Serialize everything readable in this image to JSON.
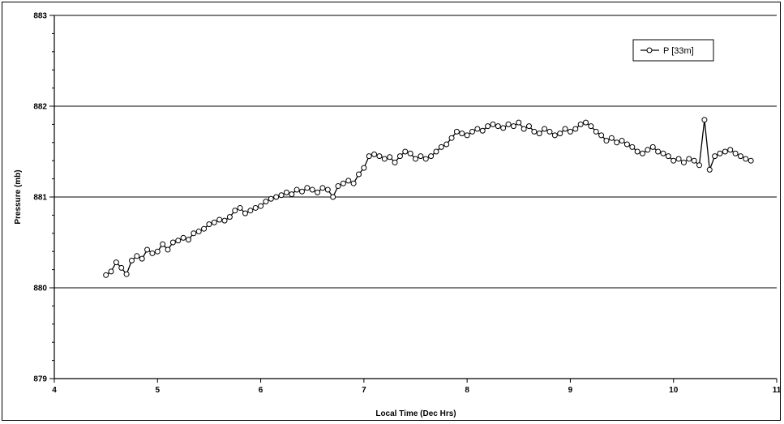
{
  "chart_data": {
    "type": "line",
    "xlabel": "Local Time (Dec Hrs)",
    "ylabel": "Pressure (mb)",
    "xlim": [
      4,
      11
    ],
    "ylim": [
      879,
      883
    ],
    "x_ticks": [
      "4",
      "5",
      "6",
      "7",
      "8",
      "9",
      "10",
      "11"
    ],
    "y_ticks": [
      "879",
      "880",
      "881",
      "882",
      "883"
    ],
    "grid": "horizontal-major",
    "legend": {
      "placement": "top-right",
      "entries": [
        "P [33m]"
      ]
    },
    "series": [
      {
        "name": "P [33m]",
        "marker": "open-circle",
        "color": "#000000",
        "x": [
          4.5,
          4.55,
          4.6,
          4.65,
          4.7,
          4.75,
          4.8,
          4.85,
          4.9,
          4.95,
          5.0,
          5.05,
          5.1,
          5.15,
          5.2,
          5.25,
          5.3,
          5.35,
          5.4,
          5.45,
          5.5,
          5.55,
          5.6,
          5.65,
          5.7,
          5.75,
          5.8,
          5.85,
          5.9,
          5.95,
          6.0,
          6.05,
          6.1,
          6.15,
          6.2,
          6.25,
          6.3,
          6.35,
          6.4,
          6.45,
          6.5,
          6.55,
          6.6,
          6.65,
          6.7,
          6.75,
          6.8,
          6.85,
          6.9,
          6.95,
          7.0,
          7.05,
          7.1,
          7.15,
          7.2,
          7.25,
          7.3,
          7.35,
          7.4,
          7.45,
          7.5,
          7.55,
          7.6,
          7.65,
          7.7,
          7.75,
          7.8,
          7.85,
          7.9,
          7.95,
          8.0,
          8.05,
          8.1,
          8.15,
          8.2,
          8.25,
          8.3,
          8.35,
          8.4,
          8.45,
          8.5,
          8.55,
          8.6,
          8.65,
          8.7,
          8.75,
          8.8,
          8.85,
          8.9,
          8.95,
          9.0,
          9.05,
          9.1,
          9.15,
          9.2,
          9.25,
          9.3,
          9.35,
          9.4,
          9.45,
          9.5,
          9.55,
          9.6,
          9.65,
          9.7,
          9.75,
          9.8,
          9.85,
          9.9,
          9.95,
          10.0,
          10.05,
          10.1,
          10.15,
          10.2,
          10.25,
          10.3,
          10.35,
          10.4,
          10.45,
          10.5,
          10.55,
          10.6,
          10.65,
          10.7,
          10.75
        ],
        "values": [
          880.14,
          880.18,
          880.28,
          880.22,
          880.15,
          880.3,
          880.35,
          880.32,
          880.42,
          880.38,
          880.4,
          880.48,
          880.42,
          880.5,
          880.52,
          880.55,
          880.53,
          880.6,
          880.62,
          880.65,
          880.7,
          880.72,
          880.75,
          880.74,
          880.78,
          880.85,
          880.88,
          880.82,
          880.85,
          880.88,
          880.9,
          880.95,
          880.98,
          881.0,
          881.02,
          881.05,
          881.03,
          881.08,
          881.06,
          881.1,
          881.08,
          881.05,
          881.1,
          881.08,
          881.0,
          881.12,
          881.15,
          881.18,
          881.15,
          881.25,
          881.32,
          881.45,
          881.47,
          881.45,
          881.42,
          881.44,
          881.38,
          881.45,
          881.5,
          881.48,
          881.42,
          881.45,
          881.42,
          881.45,
          881.5,
          881.55,
          881.58,
          881.65,
          881.72,
          881.7,
          881.68,
          881.72,
          881.75,
          881.73,
          881.78,
          881.8,
          881.78,
          881.76,
          881.8,
          881.78,
          881.82,
          881.75,
          881.78,
          881.72,
          881.7,
          881.75,
          881.72,
          881.68,
          881.7,
          881.75,
          881.72,
          881.75,
          881.8,
          881.82,
          881.78,
          881.72,
          881.68,
          881.62,
          881.65,
          881.6,
          881.62,
          881.58,
          881.55,
          881.5,
          881.48,
          881.52,
          881.55,
          881.5,
          881.48,
          881.45,
          881.4,
          881.42,
          881.38,
          881.42,
          881.4,
          881.35,
          881.85,
          881.3,
          881.45,
          881.48,
          881.5,
          881.52,
          881.48,
          881.45,
          881.42,
          881.4
        ]
      }
    ]
  }
}
